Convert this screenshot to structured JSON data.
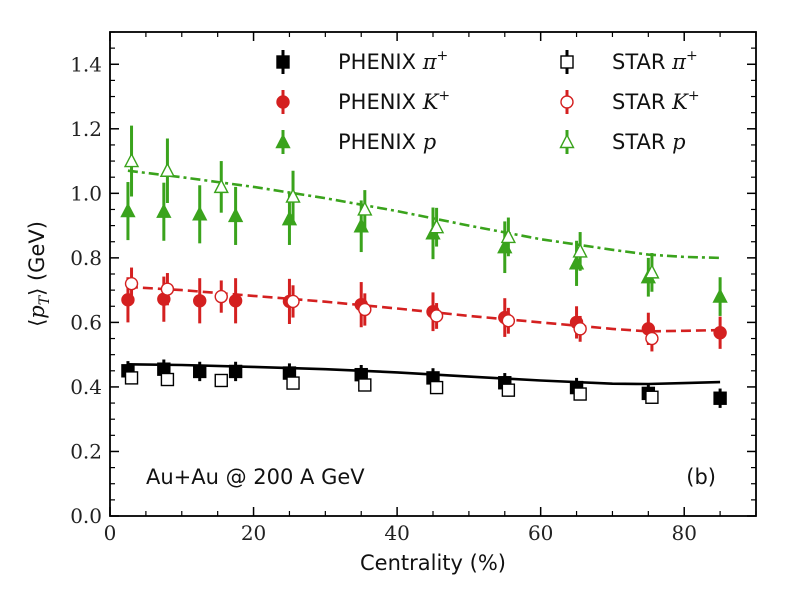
{
  "chart_data": {
    "type": "scatter",
    "title": "",
    "xlabel": "Centrality (%)",
    "ylabel": "⟨p_T⟩ (GeV)",
    "ylabel_parts": {
      "open": "⟨",
      "var": "p",
      "sub": "T",
      "close": "⟩",
      "unit": " (GeV)"
    },
    "xlim": [
      0,
      90
    ],
    "ylim": [
      0,
      1.5
    ],
    "xticks": [
      0,
      20,
      40,
      60,
      80
    ],
    "xtick_labels": [
      "0",
      "20",
      "40",
      "60",
      "80"
    ],
    "yticks": [
      0.0,
      0.2,
      0.4,
      0.6,
      0.8,
      1.0,
      1.2,
      1.4
    ],
    "ytick_labels": [
      "0.0",
      "0.2",
      "0.4",
      "0.6",
      "0.8",
      "1.0",
      "1.2",
      "1.4"
    ],
    "grid": false,
    "legend_position": "top",
    "annotations": {
      "system": "Au+Au @ 200 A GeV",
      "panel": "(b)"
    },
    "colors": {
      "black": "#000000",
      "red": "#d42020",
      "green": "#3aa31c"
    },
    "series": [
      {
        "name": "PHENIX π+",
        "label": "PHENIX",
        "symbol": "π",
        "sup": "+",
        "color": "#000000",
        "marker": "square",
        "filled": true,
        "x": [
          2.5,
          7.5,
          12.5,
          17.5,
          25,
          35,
          45,
          55,
          65,
          75,
          85
        ],
        "y": [
          0.45,
          0.455,
          0.448,
          0.448,
          0.443,
          0.438,
          0.428,
          0.413,
          0.398,
          0.38,
          0.365
        ],
        "err": [
          0.03,
          0.03,
          0.03,
          0.03,
          0.03,
          0.03,
          0.03,
          0.03,
          0.03,
          0.03,
          0.03
        ]
      },
      {
        "name": "PHENIX K+",
        "label": "PHENIX",
        "symbol": "K",
        "sup": "+",
        "color": "#d42020",
        "marker": "circle",
        "filled": true,
        "x": [
          2.5,
          7.5,
          12.5,
          17.5,
          25,
          35,
          45,
          55,
          65,
          75,
          85
        ],
        "y": [
          0.67,
          0.672,
          0.667,
          0.667,
          0.665,
          0.655,
          0.633,
          0.615,
          0.6,
          0.58,
          0.568
        ],
        "err": [
          0.07,
          0.07,
          0.07,
          0.07,
          0.07,
          0.07,
          0.06,
          0.06,
          0.05,
          0.05,
          0.05
        ]
      },
      {
        "name": "PHENIX p",
        "label": "PHENIX",
        "symbol": "p",
        "sup": "",
        "color": "#3aa31c",
        "marker": "triangle",
        "filled": true,
        "x": [
          2.5,
          7.5,
          12.5,
          17.5,
          25,
          35,
          45,
          55,
          65,
          75,
          85
        ],
        "y": [
          0.945,
          0.943,
          0.935,
          0.93,
          0.92,
          0.898,
          0.876,
          0.833,
          0.783,
          0.74,
          0.68
        ],
        "err": [
          0.09,
          0.09,
          0.09,
          0.09,
          0.08,
          0.08,
          0.08,
          0.08,
          0.07,
          0.06,
          0.06
        ]
      },
      {
        "name": "STAR π+",
        "label": "STAR",
        "symbol": "π",
        "sup": "+",
        "color": "#000000",
        "marker": "square",
        "filled": false,
        "x": [
          3,
          8,
          15.5,
          25.5,
          35.5,
          45.5,
          55.5,
          65.5,
          75.5
        ],
        "y": [
          0.428,
          0.423,
          0.42,
          0.412,
          0.406,
          0.398,
          0.39,
          0.378,
          0.368
        ],
        "err": [
          0.02,
          0.02,
          0.02,
          0.02,
          0.02,
          0.02,
          0.02,
          0.02,
          0.02
        ]
      },
      {
        "name": "STAR K+",
        "label": "STAR",
        "symbol": "K",
        "sup": "+",
        "color": "#d42020",
        "marker": "circle",
        "filled": false,
        "x": [
          3,
          8,
          15.5,
          25.5,
          35.5,
          45.5,
          55.5,
          65.5,
          75.5
        ],
        "y": [
          0.72,
          0.703,
          0.68,
          0.665,
          0.64,
          0.62,
          0.605,
          0.58,
          0.55
        ],
        "err": [
          0.05,
          0.05,
          0.05,
          0.05,
          0.05,
          0.04,
          0.04,
          0.04,
          0.04
        ]
      },
      {
        "name": "STAR p",
        "label": "STAR",
        "symbol": "p",
        "sup": "",
        "color": "#3aa31c",
        "marker": "triangle",
        "filled": false,
        "x": [
          3,
          8,
          15.5,
          25.5,
          35.5,
          45.5,
          55.5,
          65.5,
          75.5
        ],
        "y": [
          1.1,
          1.07,
          1.02,
          0.99,
          0.95,
          0.895,
          0.865,
          0.82,
          0.755
        ],
        "err": [
          0.11,
          0.1,
          0.08,
          0.08,
          0.06,
          0.06,
          0.06,
          0.06,
          0.06
        ]
      }
    ],
    "curves": [
      {
        "name": "model π+",
        "color": "#000000",
        "dash": "solid",
        "x": [
          2.5,
          10,
          20,
          30,
          40,
          50,
          60,
          70,
          75,
          80,
          85
        ],
        "y": [
          0.47,
          0.468,
          0.462,
          0.455,
          0.445,
          0.432,
          0.42,
          0.41,
          0.409,
          0.412,
          0.415
        ]
      },
      {
        "name": "model K+",
        "color": "#d42020",
        "dash": "dashed",
        "x": [
          2.5,
          10,
          20,
          30,
          40,
          50,
          60,
          70,
          75,
          80,
          85
        ],
        "y": [
          0.71,
          0.7,
          0.682,
          0.664,
          0.643,
          0.62,
          0.6,
          0.58,
          0.572,
          0.574,
          0.576
        ]
      },
      {
        "name": "model p",
        "color": "#3aa31c",
        "dash": "dashdot",
        "x": [
          2.5,
          10,
          20,
          30,
          40,
          50,
          60,
          70,
          75,
          80,
          85
        ],
        "y": [
          1.07,
          1.05,
          1.02,
          0.985,
          0.945,
          0.9,
          0.858,
          0.825,
          0.81,
          0.803,
          0.8
        ]
      }
    ]
  }
}
